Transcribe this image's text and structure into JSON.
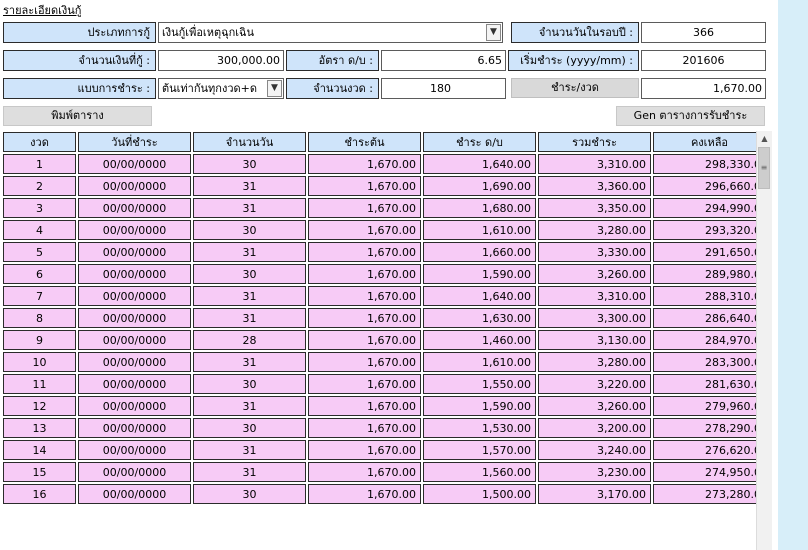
{
  "title": "รายละเอียดเงินกู้",
  "form": {
    "loan_type_label": "ประเภทการกู้",
    "loan_type_value": "เงินกู้เพื่อเหตุฉุกเฉิน",
    "days_in_cycle_label": "จำนวนวันในรอบปี :",
    "days_in_cycle_value": "366",
    "loan_amount_label": "จำนวนเงินที่กู้ :",
    "loan_amount_value": "300,000.00",
    "rate_label": "อัตรา ด/บ :",
    "rate_value": "6.65",
    "start_pay_label": "เริ่มชำระ (yyyy/mm) :",
    "start_pay_value": "201606",
    "pay_method_label": "แบบการชำระ :",
    "pay_method_value": "ต้นเท่ากันทุกงวด+ด",
    "installments_label": "จำนวนงวด :",
    "installments_value": "180",
    "pay_per_period_label": "ชำระ/งวด",
    "pay_per_period_value": "1,670.00"
  },
  "buttons": {
    "print": "พิมพ์ตาราง",
    "gen": "Gen ตารางการรับชำระ"
  },
  "table": {
    "headers": [
      "งวด",
      "วันที่ชำระ",
      "จำนวนวัน",
      "ชำระต้น",
      "ชำระ ด/บ",
      "รวมชำระ",
      "คงเหลือ"
    ],
    "rows": [
      [
        "1",
        "00/00/0000",
        "30",
        "1,670.00",
        "1,640.00",
        "3,310.00",
        "298,330.0"
      ],
      [
        "2",
        "00/00/0000",
        "31",
        "1,670.00",
        "1,690.00",
        "3,360.00",
        "296,660.0"
      ],
      [
        "3",
        "00/00/0000",
        "31",
        "1,670.00",
        "1,680.00",
        "3,350.00",
        "294,990.0"
      ],
      [
        "4",
        "00/00/0000",
        "30",
        "1,670.00",
        "1,610.00",
        "3,280.00",
        "293,320.0"
      ],
      [
        "5",
        "00/00/0000",
        "31",
        "1,670.00",
        "1,660.00",
        "3,330.00",
        "291,650.0"
      ],
      [
        "6",
        "00/00/0000",
        "30",
        "1,670.00",
        "1,590.00",
        "3,260.00",
        "289,980.0"
      ],
      [
        "7",
        "00/00/0000",
        "31",
        "1,670.00",
        "1,640.00",
        "3,310.00",
        "288,310.0"
      ],
      [
        "8",
        "00/00/0000",
        "31",
        "1,670.00",
        "1,630.00",
        "3,300.00",
        "286,640.0"
      ],
      [
        "9",
        "00/00/0000",
        "28",
        "1,670.00",
        "1,460.00",
        "3,130.00",
        "284,970.0"
      ],
      [
        "10",
        "00/00/0000",
        "31",
        "1,670.00",
        "1,610.00",
        "3,280.00",
        "283,300.0"
      ],
      [
        "11",
        "00/00/0000",
        "30",
        "1,670.00",
        "1,550.00",
        "3,220.00",
        "281,630.0"
      ],
      [
        "12",
        "00/00/0000",
        "31",
        "1,670.00",
        "1,590.00",
        "3,260.00",
        "279,960.0"
      ],
      [
        "13",
        "00/00/0000",
        "30",
        "1,670.00",
        "1,530.00",
        "3,200.00",
        "278,290.0"
      ],
      [
        "14",
        "00/00/0000",
        "31",
        "1,670.00",
        "1,570.00",
        "3,240.00",
        "276,620.0"
      ],
      [
        "15",
        "00/00/0000",
        "31",
        "1,670.00",
        "1,560.00",
        "3,230.00",
        "274,950.0"
      ],
      [
        "16",
        "00/00/0000",
        "30",
        "1,670.00",
        "1,500.00",
        "3,170.00",
        "273,280.0"
      ]
    ]
  },
  "icons": {
    "dropdown": "chevron-down-icon",
    "scroll_up": "scroll-up-arrow-icon",
    "scroll_grip": "scroll-grip-icon"
  },
  "colors": {
    "label_bg": "#cfe4fa",
    "row_bg": "#f7cbf6",
    "button_bg": "#dedede",
    "side_strip": "#d7eef9"
  }
}
